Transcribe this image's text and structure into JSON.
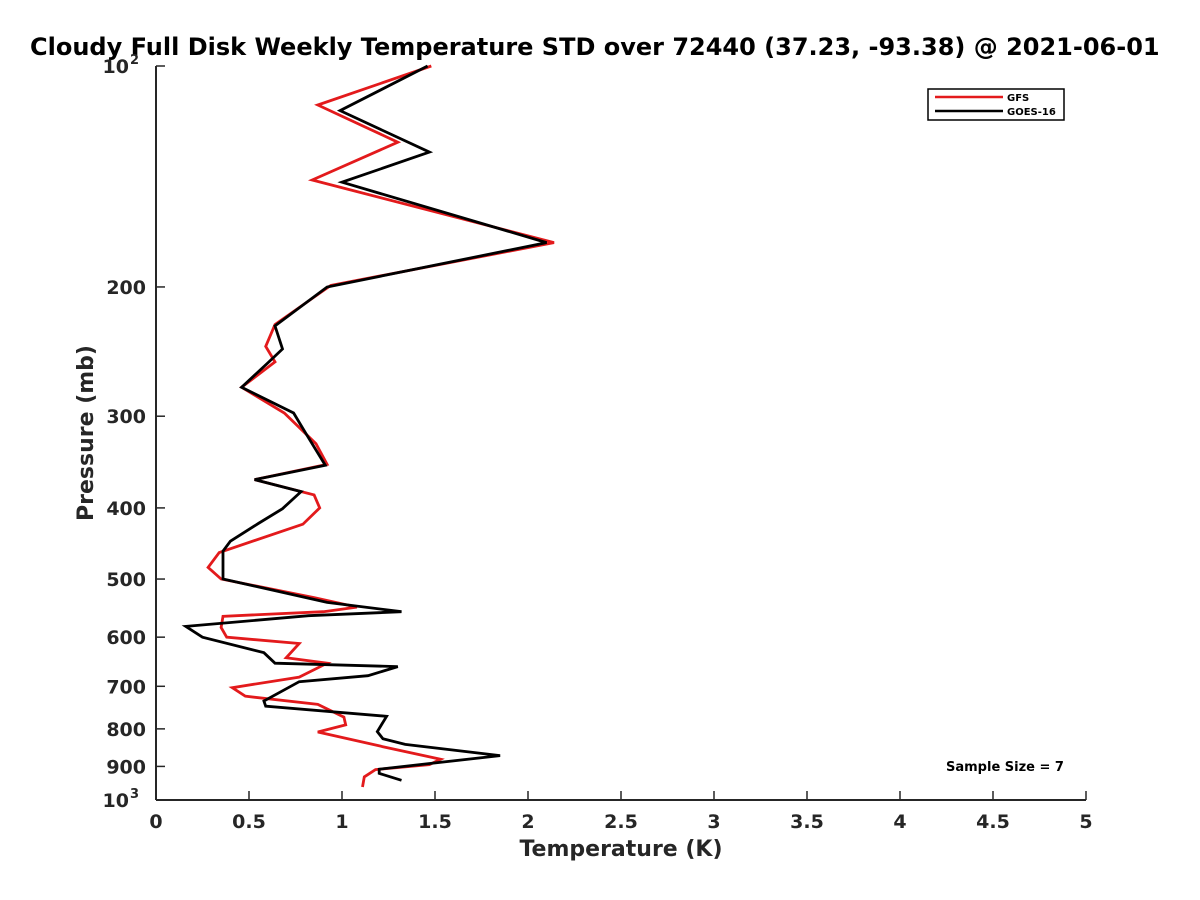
{
  "chart_data": {
    "type": "line",
    "title": "Cloudy Full Disk Weekly Temperature STD over 72440 (37.23, -93.38) @ 2021-06-01",
    "xlabel": "Temperature (K)",
    "ylabel": "Pressure (mb)",
    "xlim": [
      0,
      5
    ],
    "ylim": [
      100,
      1000
    ],
    "yscale": "log",
    "y_reversed": true,
    "x_ticks": [
      "0",
      "0.5",
      "1",
      "1.5",
      "2",
      "2.5",
      "3",
      "3.5",
      "4",
      "4.5",
      "5"
    ],
    "x_tick_values": [
      0,
      0.5,
      1,
      1.5,
      2,
      2.5,
      3,
      3.5,
      4,
      4.5,
      5
    ],
    "y_ticks": [
      {
        "value": 100,
        "base": "10",
        "exp": "2"
      },
      {
        "value": 200,
        "label": "200"
      },
      {
        "value": 300,
        "label": "300"
      },
      {
        "value": 400,
        "label": "400"
      },
      {
        "value": 500,
        "label": "500"
      },
      {
        "value": 600,
        "label": "600"
      },
      {
        "value": 700,
        "label": "700"
      },
      {
        "value": 800,
        "label": "800"
      },
      {
        "value": 900,
        "label": "900"
      },
      {
        "value": 1000,
        "base": "10",
        "exp": "3"
      }
    ],
    "grid": false,
    "legend_position": "top-right",
    "annotation": "Sample Size = 7",
    "series": [
      {
        "name": "GFS",
        "color": "#e31a1c",
        "points": [
          [
            1.48,
            100
          ],
          [
            0.87,
            113
          ],
          [
            1.3,
            127
          ],
          [
            0.84,
            143
          ],
          [
            2.14,
            174
          ],
          [
            0.94,
            199
          ],
          [
            0.64,
            225
          ],
          [
            0.59,
            241
          ],
          [
            0.64,
            253
          ],
          [
            0.46,
            274
          ],
          [
            0.69,
            297
          ],
          [
            0.86,
            327
          ],
          [
            0.92,
            349
          ],
          [
            0.53,
            366
          ],
          [
            0.85,
            384
          ],
          [
            0.88,
            400
          ],
          [
            0.79,
            421
          ],
          [
            0.34,
            460
          ],
          [
            0.28,
            482
          ],
          [
            0.35,
            500
          ],
          [
            0.85,
            530
          ],
          [
            1.08,
            546
          ],
          [
            0.9,
            554
          ],
          [
            0.36,
            562
          ],
          [
            0.35,
            582
          ],
          [
            0.38,
            600
          ],
          [
            0.77,
            612
          ],
          [
            0.72,
            632
          ],
          [
            0.7,
            640
          ],
          [
            0.92,
            651
          ],
          [
            0.77,
            680
          ],
          [
            0.41,
            703
          ],
          [
            0.48,
            722
          ],
          [
            0.87,
            741
          ],
          [
            1.01,
            771
          ],
          [
            1.02,
            790
          ],
          [
            0.87,
            808
          ],
          [
            1.22,
            846
          ],
          [
            1.53,
            880
          ],
          [
            1.47,
            895
          ],
          [
            1.18,
            909
          ],
          [
            1.12,
            930
          ],
          [
            1.11,
            960
          ]
        ]
      },
      {
        "name": "GOES-16",
        "color": "#000000",
        "points": [
          [
            1.46,
            100
          ],
          [
            0.99,
            115
          ],
          [
            1.47,
            131
          ],
          [
            1.0,
            144
          ],
          [
            2.1,
            174
          ],
          [
            0.92,
            200
          ],
          [
            0.64,
            226
          ],
          [
            0.68,
            243
          ],
          [
            0.6,
            254
          ],
          [
            0.46,
            274
          ],
          [
            0.74,
            297
          ],
          [
            0.81,
            318
          ],
          [
            0.91,
            350
          ],
          [
            0.53,
            366
          ],
          [
            0.78,
            380
          ],
          [
            0.68,
            401
          ],
          [
            0.55,
            420
          ],
          [
            0.4,
            444
          ],
          [
            0.36,
            458
          ],
          [
            0.36,
            500
          ],
          [
            0.92,
            538
          ],
          [
            1.32,
            554
          ],
          [
            0.82,
            561
          ],
          [
            0.16,
            580
          ],
          [
            0.25,
            600
          ],
          [
            0.58,
            630
          ],
          [
            0.64,
            651
          ],
          [
            1.3,
            658
          ],
          [
            1.14,
            677
          ],
          [
            0.77,
            690
          ],
          [
            0.58,
            733
          ],
          [
            0.59,
            745
          ],
          [
            1.24,
            769
          ],
          [
            1.19,
            807
          ],
          [
            1.22,
            825
          ],
          [
            1.34,
            840
          ],
          [
            1.85,
            870
          ],
          [
            1.2,
            908
          ],
          [
            1.2,
            920
          ],
          [
            1.32,
            940
          ]
        ]
      }
    ]
  }
}
